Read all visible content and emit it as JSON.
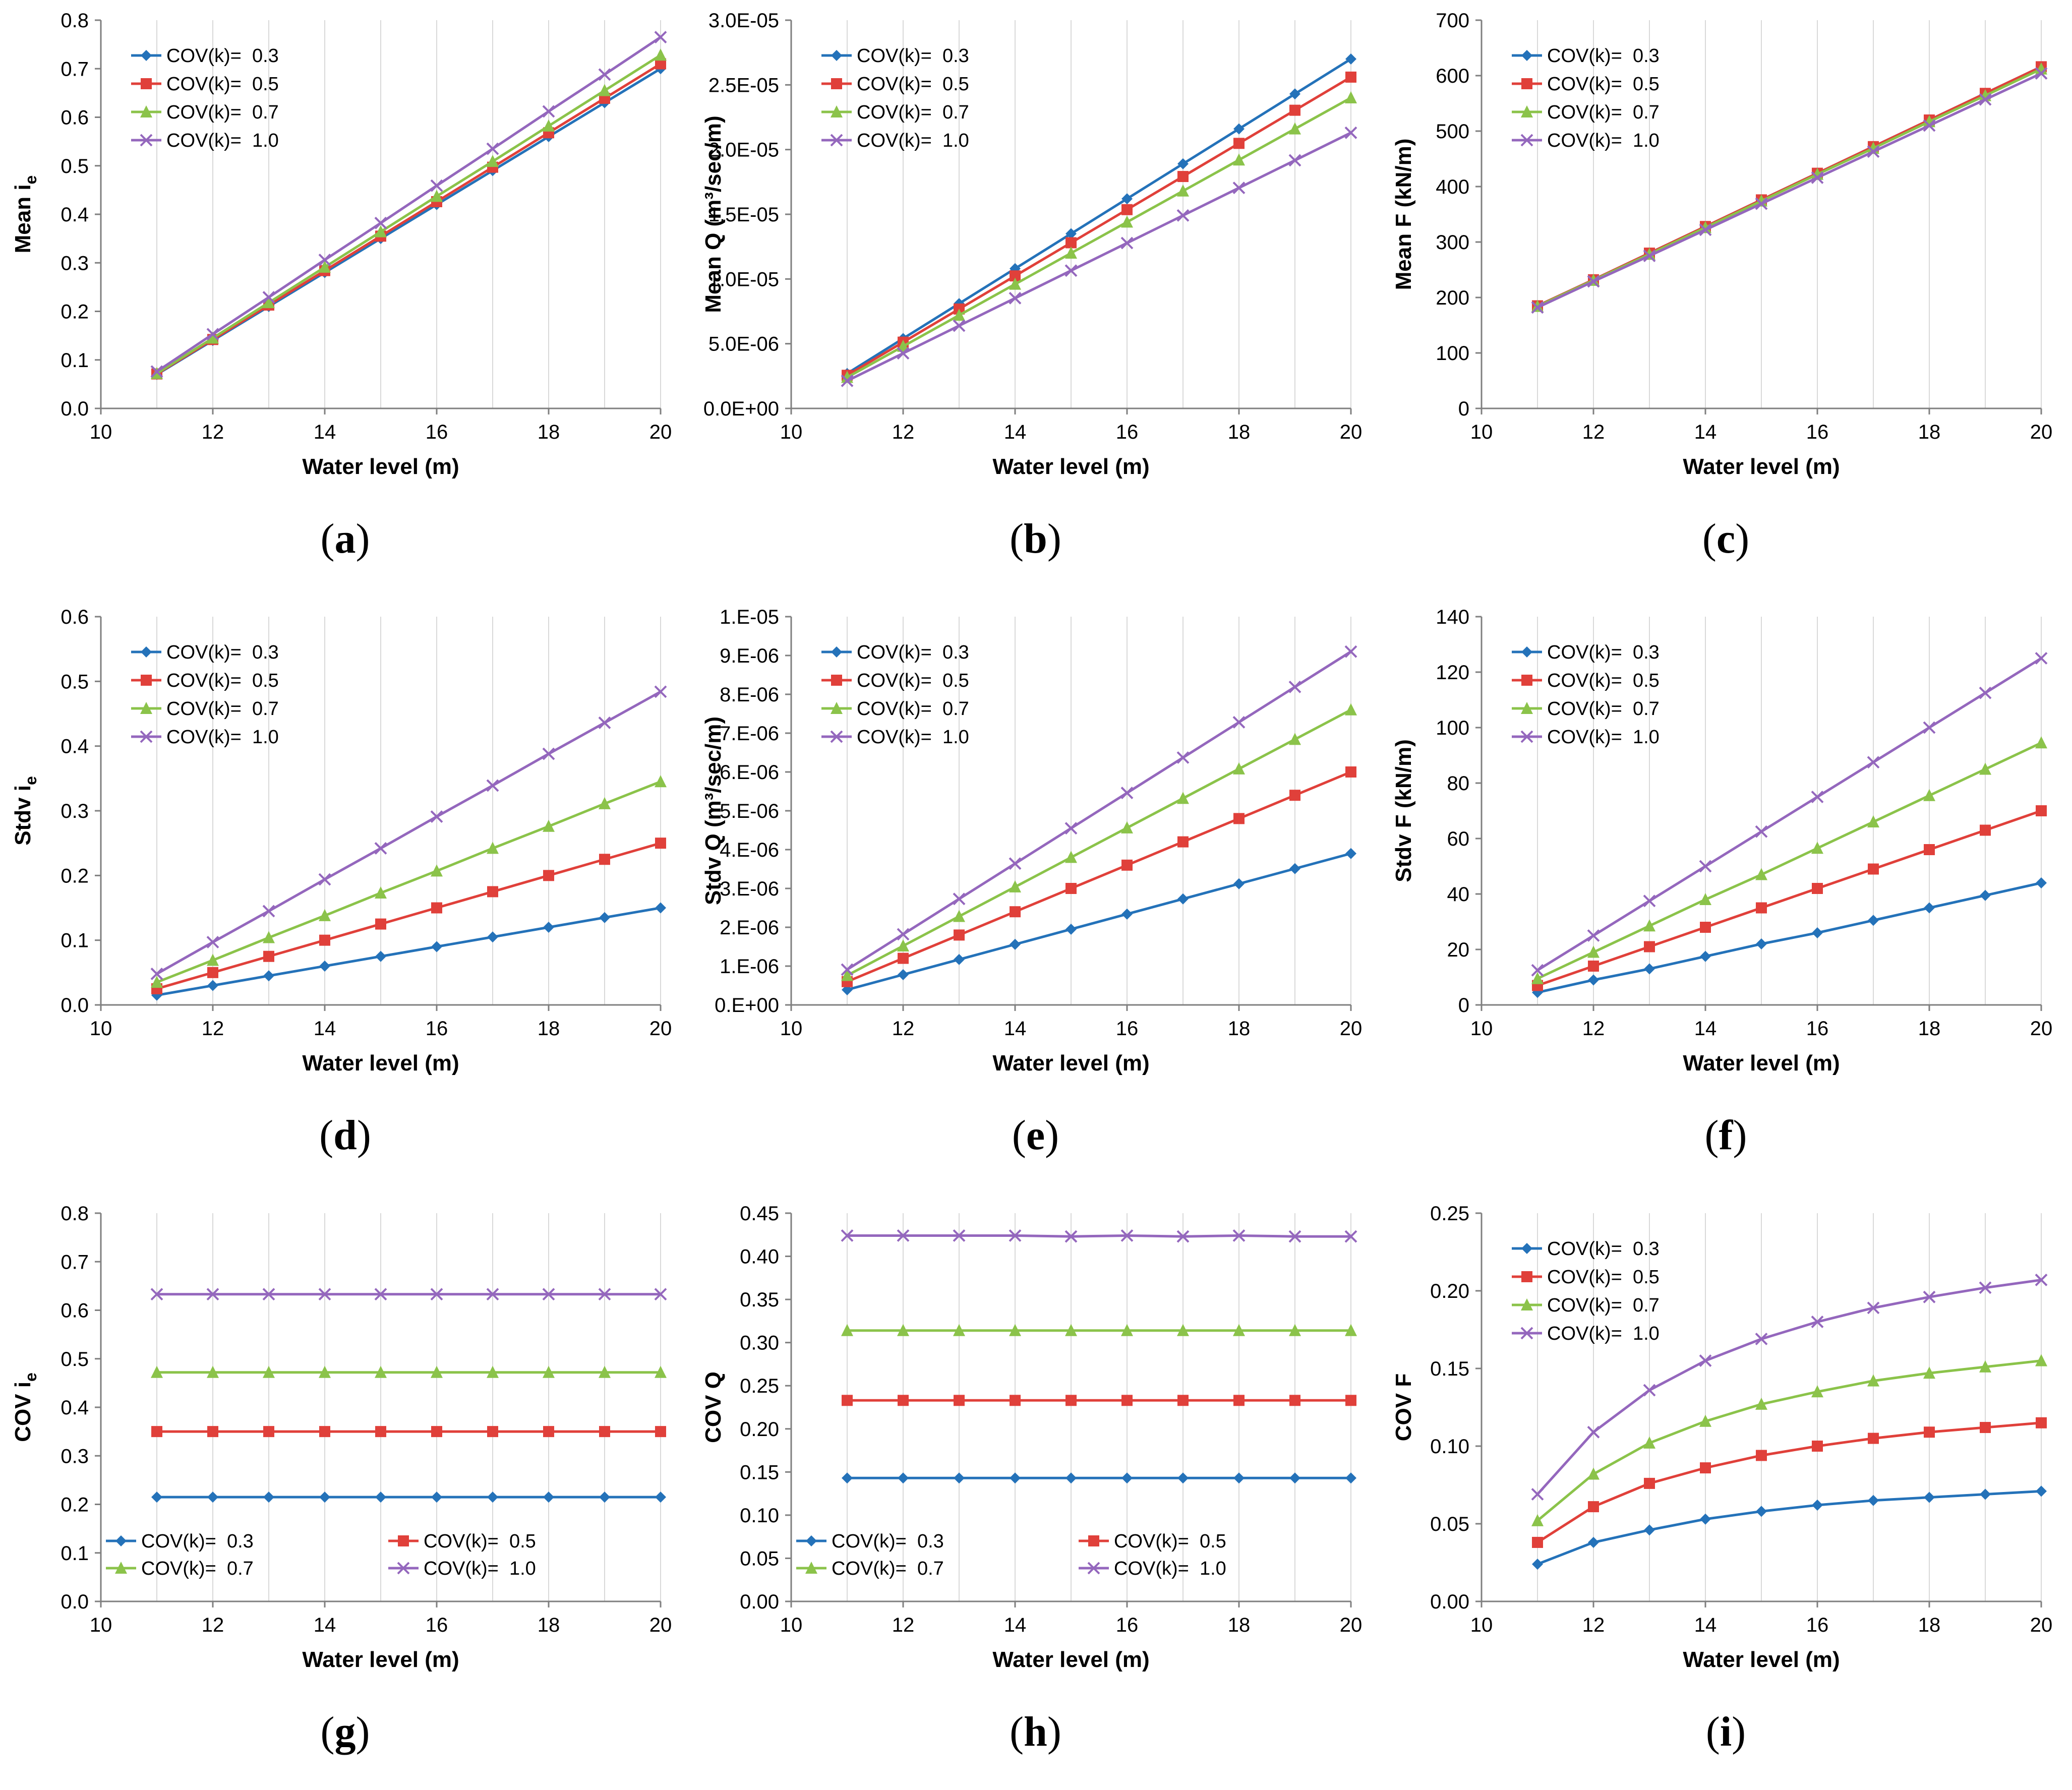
{
  "colors": {
    "s03": "#2472B9",
    "s05": "#E0403A",
    "s07": "#8BC34A",
    "s10": "#9467BD",
    "grid": "#D9D9D9",
    "axis": "#7F7F7F"
  },
  "chart_data": [
    {
      "id": "a",
      "type": "line",
      "caption": "a",
      "xlabel": "Water level (m)",
      "ylabel": "Mean i",
      "ylabel_sub": "e",
      "xlim": [
        10,
        20
      ],
      "xticks": [
        "10",
        "12",
        "14",
        "16",
        "18",
        "20"
      ],
      "ylim": [
        0,
        0.8
      ],
      "yticks": [
        "0.0",
        "0.1",
        "0.2",
        "0.3",
        "0.4",
        "0.5",
        "0.6",
        "0.7",
        "0.8"
      ],
      "x": [
        11,
        12,
        13,
        14,
        15,
        16,
        17,
        18,
        19,
        20
      ],
      "legend": "top-left",
      "series": [
        {
          "name": "COV(k)=  0.3",
          "marker": "diamond",
          "values": [
            0.07,
            0.14,
            0.21,
            0.28,
            0.35,
            0.42,
            0.49,
            0.56,
            0.63,
            0.7
          ]
        },
        {
          "name": "COV(k)=  0.5",
          "marker": "square",
          "values": [
            0.071,
            0.142,
            0.213,
            0.284,
            0.355,
            0.426,
            0.497,
            0.568,
            0.639,
            0.71
          ]
        },
        {
          "name": "COV(k)=  0.7",
          "marker": "triangle",
          "values": [
            0.072,
            0.145,
            0.218,
            0.291,
            0.364,
            0.437,
            0.509,
            0.582,
            0.655,
            0.728
          ]
        },
        {
          "name": "COV(k)=  1.0",
          "marker": "x",
          "values": [
            0.076,
            0.153,
            0.229,
            0.306,
            0.382,
            0.459,
            0.535,
            0.612,
            0.688,
            0.765
          ]
        }
      ]
    },
    {
      "id": "b",
      "type": "line",
      "caption": "b",
      "xlabel": "Water level (m)",
      "ylabel": "Mean Q (m³/sec/m)",
      "ylabel_sub": "",
      "xlim": [
        10,
        20
      ],
      "xticks": [
        "10",
        "12",
        "14",
        "16",
        "18",
        "20"
      ],
      "ylim": [
        0,
        3e-05
      ],
      "yticks": [
        "0.0E+00",
        "5.0E-06",
        "1.0E-05",
        "1.5E-05",
        "2.0E-05",
        "2.5E-05",
        "3.0E-05"
      ],
      "x": [
        11,
        12,
        13,
        14,
        15,
        16,
        17,
        18,
        19,
        20
      ],
      "legend": "top-left",
      "series": [
        {
          "name": "COV(k)=  0.3",
          "marker": "diamond",
          "values": [
            2.7e-06,
            5.4e-06,
            8.1e-06,
            1.08e-05,
            1.35e-05,
            1.62e-05,
            1.89e-05,
            2.16e-05,
            2.43e-05,
            2.7e-05
          ]
        },
        {
          "name": "COV(k)=  0.5",
          "marker": "square",
          "values": [
            2.56e-06,
            5.12e-06,
            7.68e-06,
            1.024e-05,
            1.28e-05,
            1.536e-05,
            1.792e-05,
            2.048e-05,
            2.304e-05,
            2.56e-05
          ]
        },
        {
          "name": "COV(k)=  0.7",
          "marker": "triangle",
          "values": [
            2.4e-06,
            4.8e-06,
            7.2e-06,
            9.6e-06,
            1.2e-05,
            1.44e-05,
            1.68e-05,
            1.92e-05,
            2.16e-05,
            2.4e-05
          ]
        },
        {
          "name": "COV(k)=  1.0",
          "marker": "x",
          "values": [
            2.13e-06,
            4.26e-06,
            6.39e-06,
            8.52e-06,
            1.065e-05,
            1.278e-05,
            1.491e-05,
            1.704e-05,
            1.917e-05,
            2.13e-05
          ]
        }
      ]
    },
    {
      "id": "c",
      "type": "line",
      "caption": "c",
      "xlabel": "Water level (m)",
      "ylabel": "Mean F (kN/m)",
      "ylabel_sub": "",
      "xlim": [
        10,
        20
      ],
      "xticks": [
        "10",
        "12",
        "14",
        "16",
        "18",
        "20"
      ],
      "ylim": [
        0,
        700
      ],
      "yticks": [
        "0",
        "100",
        "200",
        "300",
        "400",
        "500",
        "600",
        "700"
      ],
      "x": [
        11,
        12,
        13,
        14,
        15,
        16,
        17,
        18,
        19,
        20
      ],
      "legend": "top-left",
      "series": [
        {
          "name": "COV(k)=  0.3",
          "marker": "diamond",
          "values": [
            185,
            232,
            280,
            328,
            376,
            424,
            472,
            520,
            568,
            616
          ]
        },
        {
          "name": "COV(k)=  0.5",
          "marker": "square",
          "values": [
            185,
            232,
            280,
            328,
            376,
            424,
            472,
            520,
            568,
            616
          ]
        },
        {
          "name": "COV(k)=  0.7",
          "marker": "triangle",
          "values": [
            184,
            231,
            278,
            326,
            374,
            422,
            469,
            517,
            564,
            612
          ]
        },
        {
          "name": "COV(k)=  1.0",
          "marker": "x",
          "values": [
            182,
            229,
            275,
            322,
            369,
            416,
            463,
            510,
            557,
            604
          ]
        }
      ]
    },
    {
      "id": "d",
      "type": "line",
      "caption": "d",
      "xlabel": "Water level (m)",
      "ylabel": "Stdv i",
      "ylabel_sub": "e",
      "xlim": [
        10,
        20
      ],
      "xticks": [
        "10",
        "12",
        "14",
        "16",
        "18",
        "20"
      ],
      "ylim": [
        0,
        0.6
      ],
      "yticks": [
        "0.0",
        "0.1",
        "0.2",
        "0.3",
        "0.4",
        "0.5",
        "0.6"
      ],
      "x": [
        11,
        12,
        13,
        14,
        15,
        16,
        17,
        18,
        19,
        20
      ],
      "legend": "top-left",
      "series": [
        {
          "name": "COV(k)=  0.3",
          "marker": "diamond",
          "values": [
            0.015,
            0.03,
            0.045,
            0.06,
            0.075,
            0.09,
            0.105,
            0.12,
            0.135,
            0.15
          ]
        },
        {
          "name": "COV(k)=  0.5",
          "marker": "square",
          "values": [
            0.025,
            0.05,
            0.075,
            0.1,
            0.125,
            0.15,
            0.175,
            0.2,
            0.225,
            0.25
          ]
        },
        {
          "name": "COV(k)=  0.7",
          "marker": "triangle",
          "values": [
            0.035,
            0.069,
            0.104,
            0.138,
            0.173,
            0.207,
            0.242,
            0.276,
            0.311,
            0.345
          ]
        },
        {
          "name": "COV(k)=  1.0",
          "marker": "x",
          "values": [
            0.048,
            0.097,
            0.145,
            0.194,
            0.242,
            0.291,
            0.339,
            0.388,
            0.436,
            0.484
          ]
        }
      ]
    },
    {
      "id": "e",
      "type": "line",
      "caption": "e",
      "xlabel": "Water level (m)",
      "ylabel": "Stdv Q (m³/sec/m)",
      "ylabel_sub": "",
      "xlim": [
        10,
        20
      ],
      "xticks": [
        "10",
        "12",
        "14",
        "16",
        "18",
        "20"
      ],
      "ylim": [
        0,
        1e-05
      ],
      "yticks": [
        "0.E+00",
        "1.E-06",
        "2.E-06",
        "3.E-06",
        "4.E-06",
        "5.E-06",
        "6.E-06",
        "7.E-06",
        "8.E-06",
        "9.E-06",
        "1.E-05"
      ],
      "x": [
        11,
        12,
        13,
        14,
        15,
        16,
        17,
        18,
        19,
        20
      ],
      "legend": "top-left",
      "series": [
        {
          "name": "COV(k)=  0.3",
          "marker": "diamond",
          "values": [
            3.9e-07,
            7.8e-07,
            1.17e-06,
            1.56e-06,
            1.95e-06,
            2.34e-06,
            2.73e-06,
            3.12e-06,
            3.51e-06,
            3.9e-06
          ]
        },
        {
          "name": "COV(k)=  0.5",
          "marker": "square",
          "values": [
            6e-07,
            1.2e-06,
            1.8e-06,
            2.4e-06,
            3e-06,
            3.6e-06,
            4.2e-06,
            4.8e-06,
            5.4e-06,
            6e-06
          ]
        },
        {
          "name": "COV(k)=  0.7",
          "marker": "triangle",
          "values": [
            7.6e-07,
            1.52e-06,
            2.28e-06,
            3.04e-06,
            3.8e-06,
            4.56e-06,
            5.32e-06,
            6.08e-06,
            6.84e-06,
            7.6e-06
          ]
        },
        {
          "name": "COV(k)=  1.0",
          "marker": "x",
          "values": [
            9.1e-07,
            1.82e-06,
            2.73e-06,
            3.64e-06,
            4.55e-06,
            5.46e-06,
            6.37e-06,
            7.28e-06,
            8.19e-06,
            9.1e-06
          ]
        }
      ]
    },
    {
      "id": "f",
      "type": "line",
      "caption": "f",
      "xlabel": "Water level (m)",
      "ylabel": "Stdv F (kN/m)",
      "ylabel_sub": "",
      "xlim": [
        10,
        20
      ],
      "xticks": [
        "10",
        "12",
        "14",
        "16",
        "18",
        "20"
      ],
      "ylim": [
        0,
        140
      ],
      "yticks": [
        "0",
        "20",
        "40",
        "60",
        "80",
        "100",
        "120",
        "140"
      ],
      "x": [
        11,
        12,
        13,
        14,
        15,
        16,
        17,
        18,
        19,
        20
      ],
      "legend": "top-left",
      "series": [
        {
          "name": "COV(k)=  0.3",
          "marker": "diamond",
          "values": [
            4.5,
            9,
            13,
            17.5,
            22,
            26,
            30.5,
            35,
            39.5,
            44
          ]
        },
        {
          "name": "COV(k)=  0.5",
          "marker": "square",
          "values": [
            7,
            14,
            21,
            28,
            35,
            42,
            49,
            56,
            63,
            70
          ]
        },
        {
          "name": "COV(k)=  0.7",
          "marker": "triangle",
          "values": [
            9.5,
            19,
            28.5,
            38,
            47,
            56.5,
            66,
            75.5,
            85,
            94.5
          ]
        },
        {
          "name": "COV(k)=  1.0",
          "marker": "x",
          "values": [
            12.5,
            25,
            37.5,
            50,
            62.5,
            75,
            87.5,
            100,
            112.5,
            125
          ]
        }
      ]
    },
    {
      "id": "g",
      "type": "line",
      "caption": "g",
      "xlabel": "Water level (m)",
      "ylabel": "COV i",
      "ylabel_sub": "e",
      "xlim": [
        10,
        20
      ],
      "xticks": [
        "10",
        "12",
        "14",
        "16",
        "18",
        "20"
      ],
      "ylim": [
        0,
        0.8
      ],
      "yticks": [
        "0.0",
        "0.1",
        "0.2",
        "0.3",
        "0.4",
        "0.5",
        "0.6",
        "0.7",
        "0.8"
      ],
      "x": [
        11,
        12,
        13,
        14,
        15,
        16,
        17,
        18,
        19,
        20
      ],
      "legend": "bottom-two-column",
      "series": [
        {
          "name": "COV(k)=  0.3",
          "marker": "diamond",
          "values": [
            0.215,
            0.215,
            0.215,
            0.215,
            0.215,
            0.215,
            0.215,
            0.215,
            0.215,
            0.215
          ]
        },
        {
          "name": "COV(k)=  0.5",
          "marker": "square",
          "values": [
            0.35,
            0.35,
            0.35,
            0.35,
            0.35,
            0.35,
            0.35,
            0.35,
            0.35,
            0.35
          ]
        },
        {
          "name": "COV(k)=  0.7",
          "marker": "triangle",
          "values": [
            0.472,
            0.472,
            0.472,
            0.472,
            0.472,
            0.472,
            0.472,
            0.472,
            0.472,
            0.472
          ]
        },
        {
          "name": "COV(k)=  1.0",
          "marker": "x",
          "values": [
            0.633,
            0.633,
            0.633,
            0.633,
            0.633,
            0.633,
            0.633,
            0.633,
            0.633,
            0.633
          ]
        }
      ]
    },
    {
      "id": "h",
      "type": "line",
      "caption": "h",
      "xlabel": "Water level (m)",
      "ylabel": "COV Q",
      "ylabel_sub": "",
      "xlim": [
        10,
        20
      ],
      "xticks": [
        "10",
        "12",
        "14",
        "16",
        "18",
        "20"
      ],
      "ylim": [
        0,
        0.45
      ],
      "yticks": [
        "0.00",
        "0.05",
        "0.10",
        "0.15",
        "0.20",
        "0.25",
        "0.30",
        "0.35",
        "0.40",
        "0.45"
      ],
      "x": [
        11,
        12,
        13,
        14,
        15,
        16,
        17,
        18,
        19,
        20
      ],
      "legend": "bottom-two-column",
      "series": [
        {
          "name": "COV(k)=  0.3",
          "marker": "diamond",
          "values": [
            0.143,
            0.143,
            0.143,
            0.143,
            0.143,
            0.143,
            0.143,
            0.143,
            0.143,
            0.143
          ]
        },
        {
          "name": "COV(k)=  0.5",
          "marker": "square",
          "values": [
            0.233,
            0.233,
            0.233,
            0.233,
            0.233,
            0.233,
            0.233,
            0.233,
            0.233,
            0.233
          ]
        },
        {
          "name": "COV(k)=  0.7",
          "marker": "triangle",
          "values": [
            0.314,
            0.314,
            0.314,
            0.314,
            0.314,
            0.314,
            0.314,
            0.314,
            0.314,
            0.314
          ]
        },
        {
          "name": "COV(k)=  1.0",
          "marker": "x",
          "values": [
            0.424,
            0.424,
            0.424,
            0.424,
            0.423,
            0.424,
            0.423,
            0.424,
            0.423,
            0.423
          ]
        }
      ]
    },
    {
      "id": "i",
      "type": "line",
      "caption": "i",
      "xlabel": "Water level (m)",
      "ylabel": "COV F",
      "ylabel_sub": "",
      "xlim": [
        10,
        20
      ],
      "xticks": [
        "10",
        "12",
        "14",
        "16",
        "18",
        "20"
      ],
      "ylim": [
        0,
        0.25
      ],
      "yticks": [
        "0.00",
        "0.05",
        "0.10",
        "0.15",
        "0.20",
        "0.25"
      ],
      "x": [
        11,
        12,
        13,
        14,
        15,
        16,
        17,
        18,
        19,
        20
      ],
      "legend": "top-left",
      "series": [
        {
          "name": "COV(k)=  0.3",
          "marker": "diamond",
          "values": [
            0.024,
            0.038,
            0.046,
            0.053,
            0.058,
            0.062,
            0.065,
            0.067,
            0.069,
            0.071
          ]
        },
        {
          "name": "COV(k)=  0.5",
          "marker": "square",
          "values": [
            0.038,
            0.061,
            0.076,
            0.086,
            0.094,
            0.1,
            0.105,
            0.109,
            0.112,
            0.115
          ]
        },
        {
          "name": "COV(k)=  0.7",
          "marker": "triangle",
          "values": [
            0.052,
            0.082,
            0.102,
            0.116,
            0.127,
            0.135,
            0.142,
            0.147,
            0.151,
            0.155
          ]
        },
        {
          "name": "COV(k)=  1.0",
          "marker": "x",
          "values": [
            0.069,
            0.109,
            0.136,
            0.155,
            0.169,
            0.18,
            0.189,
            0.196,
            0.202,
            0.207
          ]
        }
      ]
    }
  ]
}
